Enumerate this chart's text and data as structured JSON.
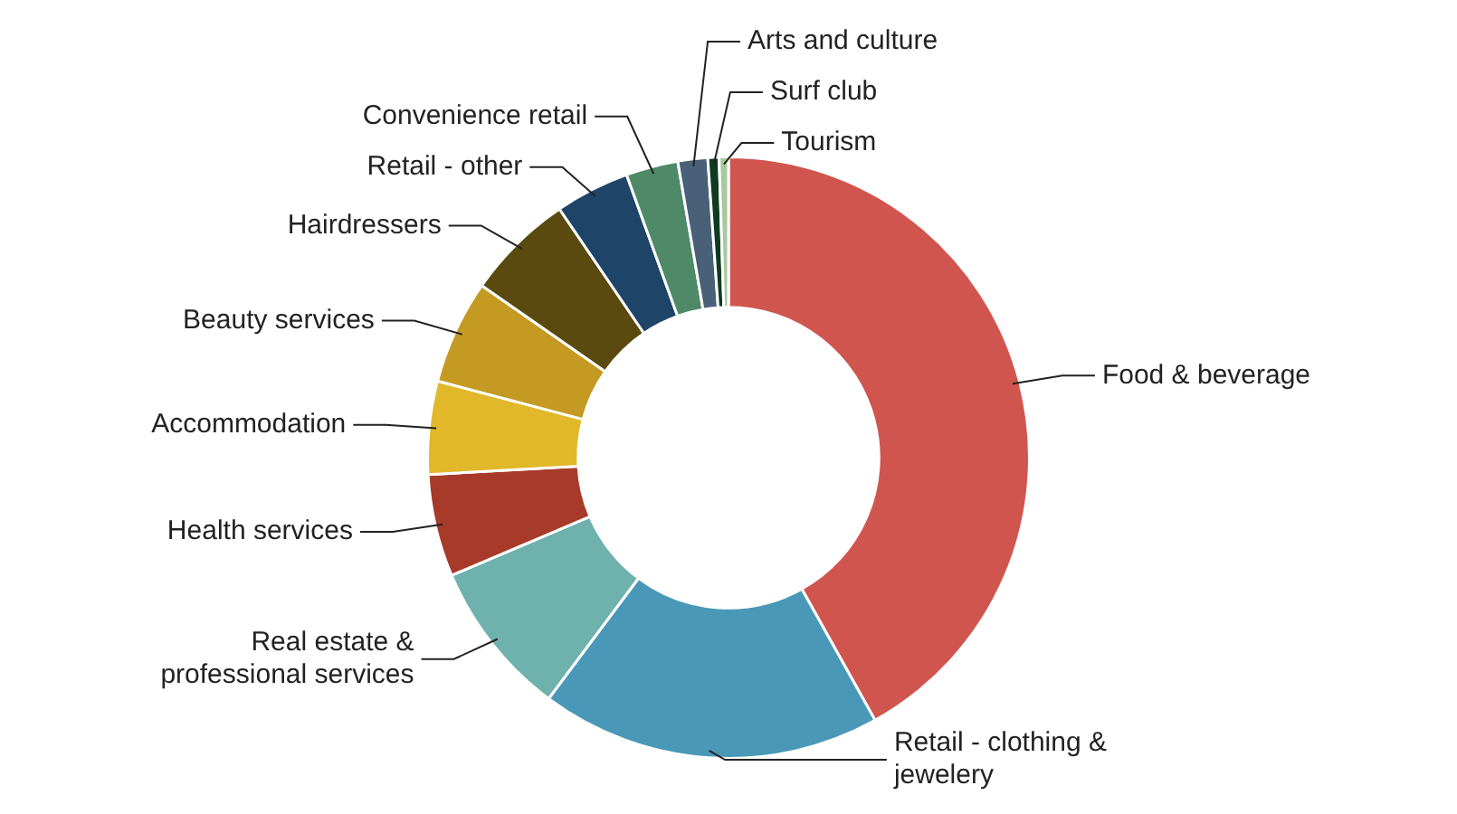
{
  "chart_data": {
    "type": "donut",
    "legend": false,
    "categories": [
      "Food & beverage",
      "Retail - clothing & jewelery",
      "Real estate & professional services",
      "Health services",
      "Accommodation",
      "Beauty services",
      "Hairdressers",
      "Retail - other",
      "Convenience retail",
      "Arts and culture",
      "Surf club",
      "Tourism"
    ],
    "values": [
      41.9,
      18.3,
      8.4,
      5.5,
      5.0,
      5.6,
      5.8,
      4.0,
      2.8,
      1.6,
      0.6,
      0.5
    ],
    "colors": [
      "#d0554f",
      "#4a98b8",
      "#6fb2ad",
      "#a83a2a",
      "#e0b82a",
      "#c49a22",
      "#5a4a10",
      "#1e4468",
      "#4e8a68",
      "#4a6078",
      "#0e3a20",
      "#a8c8a0"
    ]
  }
}
